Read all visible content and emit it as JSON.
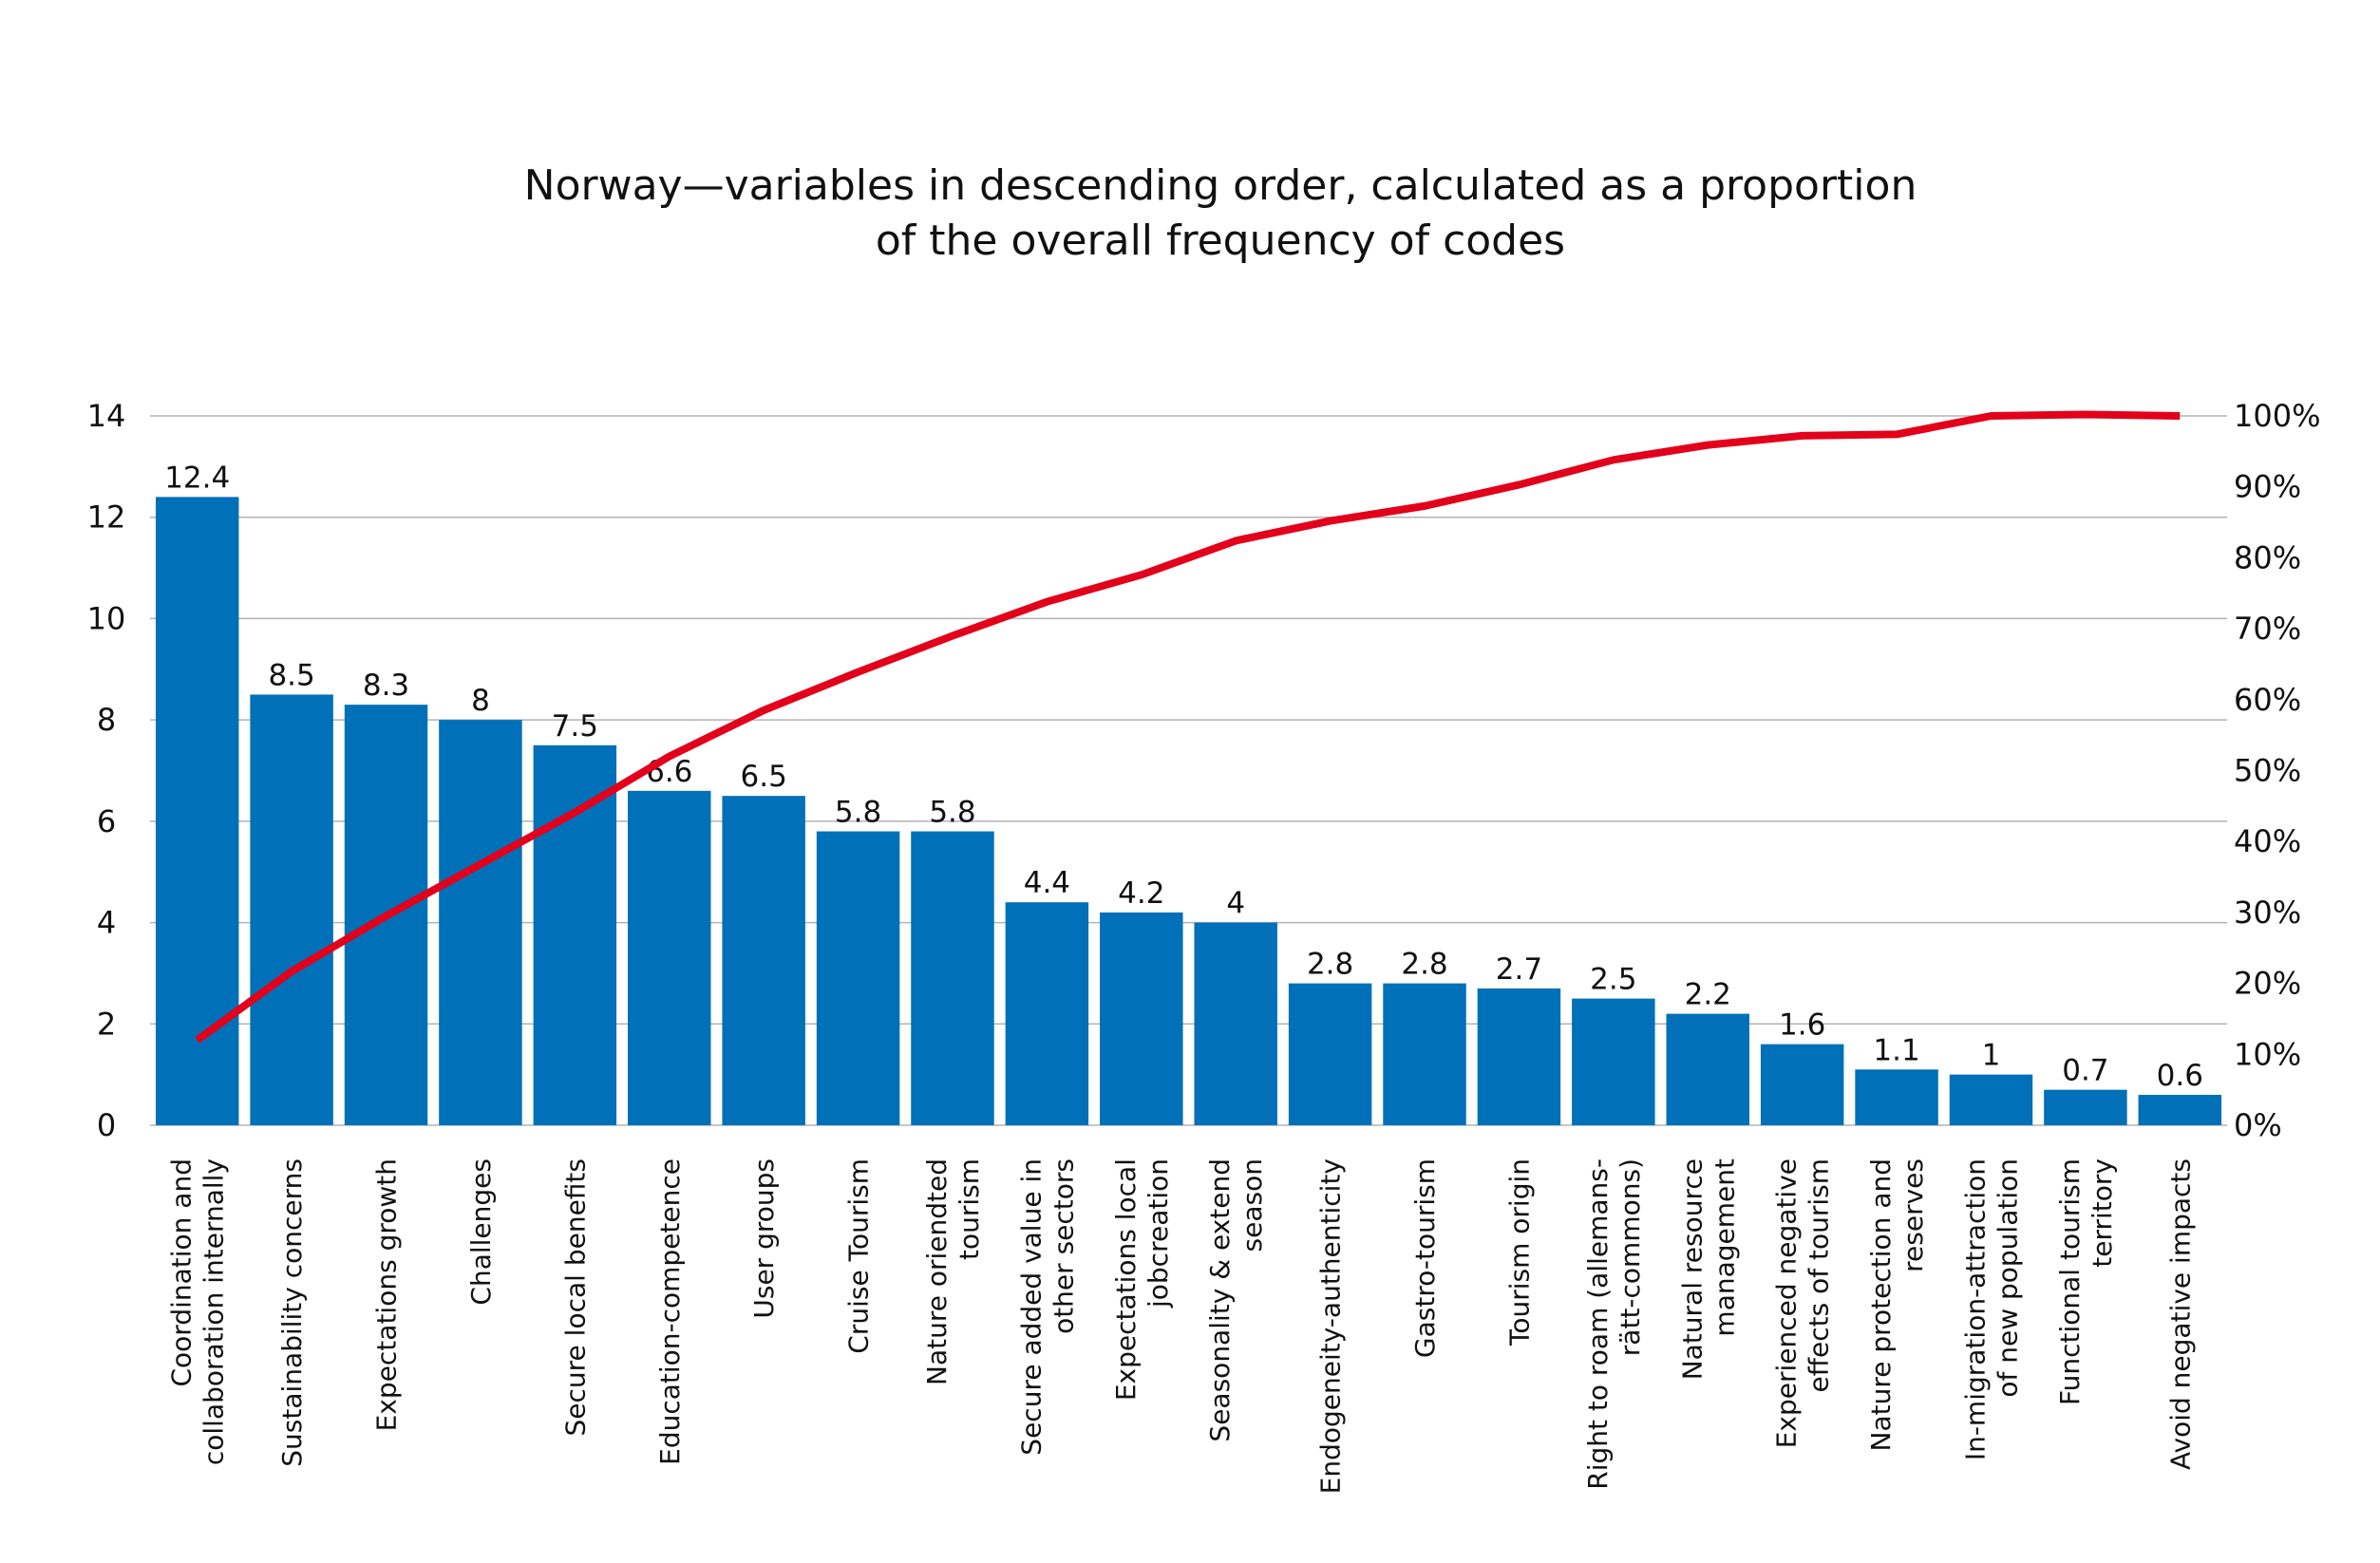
{
  "chart_data": {
    "type": "bar+line",
    "title": [
      "Norway—variables in descending order, calculated as a proportion",
      "of the overall frequency of codes"
    ],
    "categories": [
      [
        "Coordination and",
        "collaboration internally"
      ],
      [
        "Sustainability concerns"
      ],
      [
        "Expectations growth"
      ],
      [
        "Challenges"
      ],
      [
        "Secure local benefits"
      ],
      [
        "Education-competence"
      ],
      [
        "User groups"
      ],
      [
        "Cruise Tourism"
      ],
      [
        "Nature oriendted",
        "tourism"
      ],
      [
        "Secure added value in",
        "other sectors"
      ],
      [
        "Expectations local",
        "jobcreation"
      ],
      [
        "Seasonality & extend",
        "season"
      ],
      [
        "Endogeneity-authenticity"
      ],
      [
        "Gastro-tourism"
      ],
      [
        "Tourism origin"
      ],
      [
        "Right to roam (allemans-",
        "rätt-commons)"
      ],
      [
        "Natural resource",
        "management"
      ],
      [
        "Experienced negative",
        "effects of tourism"
      ],
      [
        "Nature protection and",
        "reserves"
      ],
      [
        "In-migration-attraction",
        "of new population"
      ],
      [
        "Functional tourism",
        "territory"
      ],
      [
        "Avoid negative impacts"
      ]
    ],
    "series": [
      {
        "type": "bar",
        "color": "#0070b8",
        "axis": "left",
        "values": [
          12.4,
          8.5,
          8.3,
          8,
          7.5,
          6.6,
          6.5,
          5.8,
          5.8,
          4.4,
          4.2,
          4,
          2.8,
          2.8,
          2.7,
          2.5,
          2.2,
          1.6,
          1.1,
          1,
          0.7,
          0.6
        ],
        "labels": [
          "12.4",
          "8.5",
          "8.3",
          "8",
          "7.5",
          "6.6",
          "6.5",
          "5.8",
          "5.8",
          "4.4",
          "4.2",
          "4",
          "2.8",
          "2.8",
          "2.7",
          "2.5",
          "2.2",
          "1.6",
          "1.1",
          "1",
          "0.7",
          "0.6"
        ]
      },
      {
        "type": "line",
        "color": "#e2001a",
        "axis": "right",
        "values": [
          12,
          21.7,
          29.5,
          36.8,
          44.1,
          52,
          58.5,
          63.9,
          69,
          73.8,
          77.6,
          82.4,
          85.2,
          87.3,
          90.3,
          93.8,
          95.9,
          97.2,
          97.4,
          100,
          100.2,
          100
        ]
      }
    ],
    "y_left": {
      "range": [
        0,
        14
      ],
      "ticks": [
        "0",
        "2",
        "4",
        "6",
        "8",
        "10",
        "12",
        "14"
      ]
    },
    "y_right": {
      "range": [
        0,
        100
      ],
      "ticks": [
        "0%",
        "10%",
        "20%",
        "30%",
        "40%",
        "50%",
        "60%",
        "70%",
        "80%",
        "90%",
        "100%"
      ]
    },
    "grid": true,
    "gridColor": "#b3b3b3",
    "legend": "none"
  }
}
